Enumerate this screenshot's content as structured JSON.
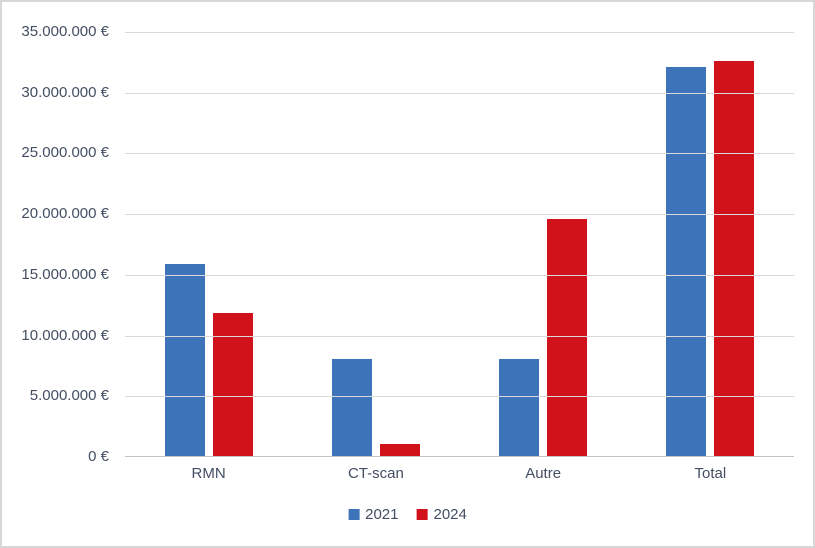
{
  "chart_data": {
    "type": "bar",
    "title": "",
    "categories": [
      "RMN",
      "CT-scan",
      "Autre",
      "Total"
    ],
    "series": [
      {
        "name": "2021",
        "color": "#3d73b9",
        "values": [
          15900000,
          8100000,
          8100000,
          32100000
        ]
      },
      {
        "name": "2024",
        "color": "#d2121a",
        "values": [
          11900000,
          1100000,
          19600000,
          32600000
        ]
      }
    ],
    "ylabel": "",
    "xlabel": "",
    "ylim": [
      0,
      35000000
    ],
    "y_tick_step": 5000000,
    "y_tick_labels": [
      "0 €",
      "5.000.000 €",
      "10.000.000 €",
      "15.000.000 €",
      "20.000.000 €",
      "25.000.000 €",
      "30.000.000 €",
      "35.000.000 €"
    ],
    "currency_symbol": "€",
    "grid": true,
    "legend_position": "bottom",
    "colors": {
      "gridline": "#d9d9d9",
      "axis_line": "#c3c3c3",
      "frame_border": "#d7d7d7",
      "label_text": "#434e63",
      "background": "#ffffff"
    }
  }
}
